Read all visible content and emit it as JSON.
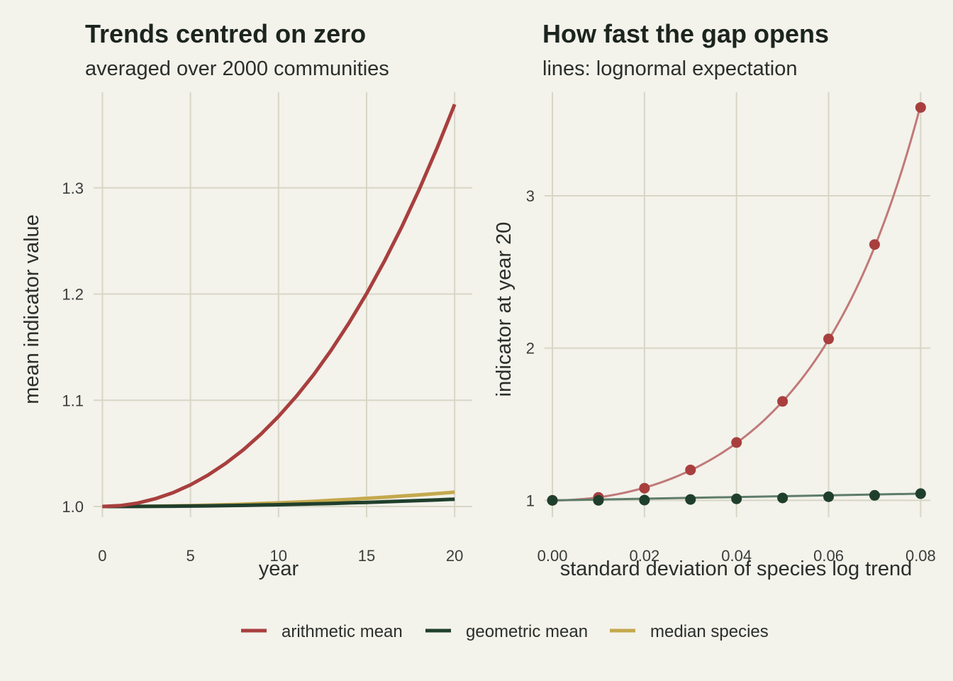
{
  "colors": {
    "background": "#f3f2eb",
    "grid": "#d7d6c6",
    "arithmetic": "#a83f3e",
    "geometric": "#1f3f2c",
    "median": "#c4a94d",
    "arithmetic_fit": "#c07a78",
    "geometric_fit": "#5e7c69"
  },
  "legend": {
    "position": "bottom",
    "items": [
      {
        "key": "arithmetic",
        "label": "arithmetic mean"
      },
      {
        "key": "geometric",
        "label": "geometric mean"
      },
      {
        "key": "median",
        "label": "median species"
      }
    ]
  },
  "chart_data": [
    {
      "type": "line",
      "title": "Trends centred on zero",
      "subtitle": "averaged over 2000 communities",
      "xlabel": "year",
      "ylabel": "mean indicator value",
      "xlim": [
        -0.5,
        21
      ],
      "ylim": [
        0.99,
        1.39
      ],
      "xticks": [
        0,
        5,
        10,
        15,
        20
      ],
      "xtick_labels": [
        "0",
        "5",
        "10",
        "15",
        "20"
      ],
      "yticks": [
        1.0,
        1.1,
        1.2,
        1.3
      ],
      "ytick_labels": [
        "1.0",
        "1.1",
        "1.2",
        "1.3"
      ],
      "grid": true,
      "x": [
        0,
        1,
        2,
        3,
        4,
        5,
        6,
        7,
        8,
        9,
        10,
        11,
        12,
        13,
        14,
        15,
        16,
        17,
        18,
        19,
        20
      ],
      "series": [
        {
          "key": "arithmetic",
          "name": "arithmetic mean",
          "values": [
            1.0,
            1.0008,
            1.0032,
            1.0073,
            1.013,
            1.0204,
            1.0296,
            1.0406,
            1.0534,
            1.0681,
            1.0848,
            1.1035,
            1.1243,
            1.1474,
            1.1727,
            1.2004,
            1.2306,
            1.2634,
            1.2989,
            1.3373,
            1.3786
          ]
        },
        {
          "key": "geometric",
          "name": "geometric mean",
          "values": [
            1.0,
            1.0,
            1.0001,
            1.0002,
            1.0003,
            1.0004,
            1.0006,
            1.0008,
            1.0011,
            1.0014,
            1.0017,
            1.0021,
            1.0025,
            1.0029,
            1.0034,
            1.0039,
            1.0044,
            1.005,
            1.0056,
            1.0062,
            1.0069
          ]
        },
        {
          "key": "median",
          "name": "median species",
          "values": [
            1.0,
            1.0,
            1.0001,
            1.0003,
            1.0006,
            1.0009,
            1.0013,
            1.0017,
            1.0022,
            1.0028,
            1.0034,
            1.0041,
            1.0049,
            1.0058,
            1.0067,
            1.0077,
            1.0087,
            1.0098,
            1.011,
            1.0122,
            1.0135
          ]
        }
      ]
    },
    {
      "type": "scatter",
      "title": "How fast the gap opens",
      "subtitle": "lines: lognormal expectation",
      "xlabel": "standard deviation of species log trend",
      "ylabel": "indicator at year 20",
      "xlim": [
        -0.0017,
        0.0821
      ],
      "ylim": [
        0.89,
        3.68
      ],
      "xticks": [
        0.0,
        0.02,
        0.04,
        0.06,
        0.08
      ],
      "xtick_labels": [
        "0.00",
        "0.02",
        "0.04",
        "0.06",
        "0.08"
      ],
      "yticks": [
        1,
        2,
        3
      ],
      "ytick_labels": [
        "1",
        "2",
        "3"
      ],
      "grid": true,
      "x": [
        0.0,
        0.01,
        0.02,
        0.03,
        0.04,
        0.05,
        0.06,
        0.07,
        0.08
      ],
      "series": [
        {
          "key": "arithmetic",
          "name": "arithmetic mean",
          "points": [
            1.0,
            1.02,
            1.08,
            1.2,
            1.38,
            1.65,
            2.06,
            2.68,
            3.58
          ],
          "fit": "exp(200*s^2)"
        },
        {
          "key": "geometric",
          "name": "geometric mean",
          "points": [
            1.0,
            1.0,
            1.002,
            1.006,
            1.01,
            1.016,
            1.024,
            1.033,
            1.044
          ],
          "fit": "linear from 1.0 to 1.044"
        }
      ]
    }
  ]
}
